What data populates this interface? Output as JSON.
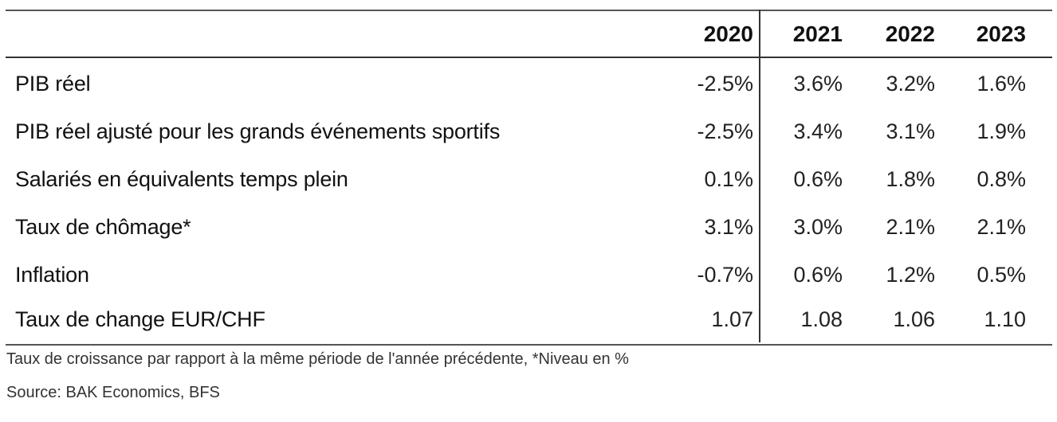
{
  "table": {
    "years": [
      "2020",
      "2021",
      "2022",
      "2023"
    ],
    "rows": [
      {
        "label": "PIB réel",
        "values": [
          "-2.5%",
          "3.6%",
          "3.2%",
          "1.6%"
        ]
      },
      {
        "label": "PIB réel ajusté pour les grands événements sportifs",
        "values": [
          "-2.5%",
          "3.4%",
          "3.1%",
          "1.9%"
        ]
      },
      {
        "label": "Salariés en équivalents temps plein",
        "values": [
          "0.1%",
          "0.6%",
          "1.8%",
          "0.8%"
        ]
      },
      {
        "label": "Taux de chômage*",
        "values": [
          "3.1%",
          "3.0%",
          "2.1%",
          "2.1%"
        ]
      },
      {
        "label": "Inflation",
        "values": [
          "-0.7%",
          "0.6%",
          "1.2%",
          "0.5%"
        ]
      },
      {
        "label": "Taux de change EUR/CHF",
        "values": [
          "1.07",
          "1.08",
          "1.06",
          "1.10"
        ]
      }
    ]
  },
  "notes": {
    "footnote": "Taux de croissance par rapport à la même période de l'année précédente, *Niveau en %",
    "source": "Source: BAK Economics, BFS"
  }
}
